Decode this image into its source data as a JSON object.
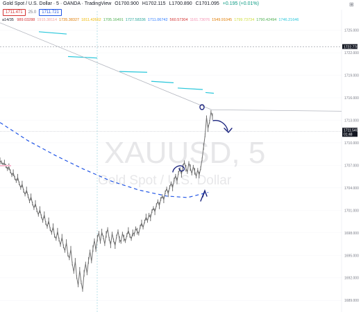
{
  "header": {
    "symbol": "Gold Spot / U.S. Dollar · 5 · OANDA · TradingView",
    "open": "O1700.900",
    "high": "H1702.115",
    "low": "L1700.890",
    "close": "C1701.095",
    "change": "+0.195 (+0.01%)"
  },
  "price_row": {
    "bid": "1711.471",
    "spread": "25.0",
    "ask": "1711.721"
  },
  "indicators": {
    "name": "a14/35",
    "values": [
      {
        "text": "989.03288",
        "color": "#d32f2f"
      },
      {
        "text": "1915.38114",
        "color": "#f2a0a0"
      },
      {
        "text": "1735.38327",
        "color": "#e07b00"
      },
      {
        "text": "1811.42662",
        "color": "#f0b800"
      },
      {
        "text": "1705.16491",
        "color": "#4caf50"
      },
      {
        "text": "1727.58336",
        "color": "#26a69a"
      },
      {
        "text": "1711.06742",
        "color": "#2979ff"
      },
      {
        "text": "560.57304",
        "color": "#d32f2f"
      },
      {
        "text": "1161.73076",
        "color": "#f48fb1"
      },
      {
        "text": "1549.91045",
        "color": "#e07b00"
      },
      {
        "text": "1799.73734",
        "color": "#cddc39"
      },
      {
        "text": "1790.42494",
        "color": "#4caf50"
      },
      {
        "text": "1746.21646",
        "color": "#26c6da"
      }
    ]
  },
  "watermark": {
    "symbol": "XAUUSD, 5",
    "description": "Gold Spot / U.S. Dollar"
  },
  "top_right_icon": "expand-icon",
  "chart_data": {
    "type": "line",
    "y_axis": {
      "ticks": [
        1725,
        1722,
        1719,
        1716,
        1713,
        1710,
        1707,
        1704,
        1701,
        1698,
        1695,
        1692,
        1689
      ],
      "tick_labels": [
        "1725.000",
        "1722.000",
        "1719.000",
        "1716.000",
        "1713.000",
        "1710.000",
        "1707.000",
        "1704.000",
        "1701.000",
        "1698.000",
        "1695.000",
        "1692.000",
        "1689.000"
      ],
      "range": [
        1688.0,
        1727.0
      ]
    },
    "last_price": {
      "value": 1711.54,
      "label": "1711.540",
      "countdown": "01:48"
    },
    "dashed_level": {
      "value": 1722.778,
      "label": "1722.778"
    },
    "price_series": {
      "name": "price",
      "values": [
        1707.6,
        1707.4,
        1707.1,
        1707.3,
        1706.9,
        1706.5,
        1706.8,
        1706.2,
        1705.7,
        1706.0,
        1705.3,
        1704.9,
        1705.4,
        1704.6,
        1704.0,
        1704.5,
        1703.6,
        1703.1,
        1703.7,
        1702.9,
        1702.2,
        1702.8,
        1701.9,
        1701.3,
        1701.9,
        1701.0,
        1700.4,
        1701.1,
        1700.2,
        1699.6,
        1700.4,
        1699.3,
        1698.8,
        1699.6,
        1698.5,
        1698.0,
        1698.8,
        1697.6,
        1697.2,
        1698.2,
        1697.1,
        1696.4,
        1697.4,
        1696.2,
        1695.6,
        1696.7,
        1695.1,
        1694.6,
        1695.8,
        1693.9,
        1692.8,
        1694.2,
        1692.1,
        1691.0,
        1693.0,
        1691.4,
        1690.4,
        1692.6,
        1693.9,
        1692.6,
        1694.3,
        1695.5,
        1694.2,
        1695.9,
        1697.0,
        1695.7,
        1697.3,
        1698.0,
        1696.8,
        1698.1,
        1697.4,
        1696.5,
        1697.8,
        1698.5,
        1697.2,
        1696.4,
        1697.9,
        1697.0,
        1696.3,
        1697.5,
        1698.2,
        1697.1,
        1696.8,
        1697.9,
        1697.3,
        1696.9,
        1697.7,
        1698.3,
        1697.6,
        1697.2,
        1698.0,
        1697.8,
        1698.6,
        1698.2,
        1697.9,
        1698.8,
        1699.3,
        1698.7,
        1699.5,
        1700.1,
        1699.6,
        1700.4,
        1700.0,
        1700.9,
        1701.3,
        1700.8,
        1701.7,
        1702.2,
        1701.6,
        1702.5,
        1702.9,
        1702.4,
        1703.4,
        1703.9,
        1703.2,
        1704.1,
        1704.6,
        1704.0,
        1705.1,
        1705.6,
        1704.9,
        1706.0,
        1706.5,
        1705.8,
        1706.9,
        1707.4,
        1706.6,
        1706.1,
        1707.3,
        1706.7,
        1705.9,
        1706.8,
        1706.2,
        1705.5,
        1706.4,
        1705.7,
        1706.6,
        1707.8,
        1709.5,
        1711.0,
        1713.4,
        1711.9,
        1712.8,
        1714.1,
        1713.5
      ],
      "color": "#6f6f6f"
    },
    "descending_line": {
      "name": "trend",
      "start": [
        0,
        1726.0
      ],
      "end": [
        305,
        1714.4
      ],
      "color": "#b2b5be"
    },
    "blue_dashed_curve": {
      "points": [
        [
          0,
          1712.7
        ],
        [
          40,
          1710.3
        ],
        [
          80,
          1708.3
        ],
        [
          120,
          1706.5
        ],
        [
          160,
          1704.9
        ],
        [
          200,
          1703.7
        ],
        [
          240,
          1702.9
        ],
        [
          270,
          1702.7
        ],
        [
          300,
          1703.4
        ]
      ],
      "color": "#1e53e5"
    },
    "teal_segments": [
      {
        "x": [
          56,
          96
        ],
        "y": [
          1724.8,
          1724.5
        ]
      },
      {
        "x": [
          98,
          140
        ],
        "y": [
          1721.5,
          1721.3
        ]
      },
      {
        "x": [
          172,
          212
        ],
        "y": [
          1719.5,
          1719.4
        ]
      },
      {
        "x": [
          218,
          250
        ],
        "y": [
          1718.2,
          1718.0
        ]
      },
      {
        "x": [
          256,
          292
        ],
        "y": [
          1717.3,
          1717.1
        ]
      },
      {
        "x": [
          296,
          308
        ],
        "y": [
          1716.7,
          1716.6
        ]
      }
    ],
    "teal_color": "#26c6da",
    "vertical_line_x": 140,
    "annotation_color": "#1a237e"
  }
}
